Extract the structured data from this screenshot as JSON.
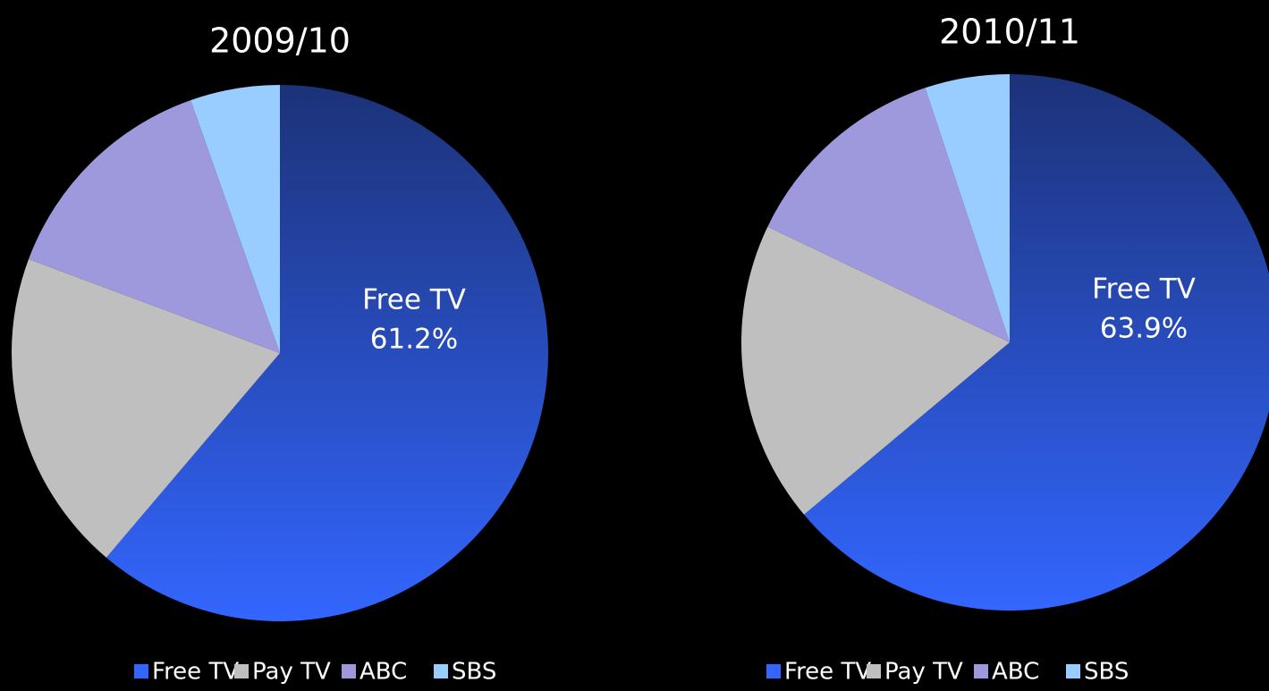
{
  "chart_data": [
    {
      "type": "pie",
      "title": "2009/10",
      "categories": [
        "Free TV",
        "Pay TV",
        "ABC",
        "SBS"
      ],
      "values": [
        61.2,
        19.5,
        13.9,
        5.4
      ],
      "value_labels": [
        "61.2%",
        null,
        null,
        null
      ],
      "colors": [
        "#3366ff",
        "#bfbfbf",
        "#9e99dd",
        "#99ccff"
      ]
    },
    {
      "type": "pie",
      "title": "2010/11",
      "categories": [
        "Free TV",
        "Pay TV",
        "ABC",
        "SBS"
      ],
      "values": [
        63.9,
        18.2,
        12.8,
        5.1
      ],
      "value_labels": [
        "63.9%",
        null,
        null,
        null
      ],
      "colors": [
        "#3366ff",
        "#bfbfbf",
        "#9e99dd",
        "#99ccff"
      ]
    }
  ]
}
